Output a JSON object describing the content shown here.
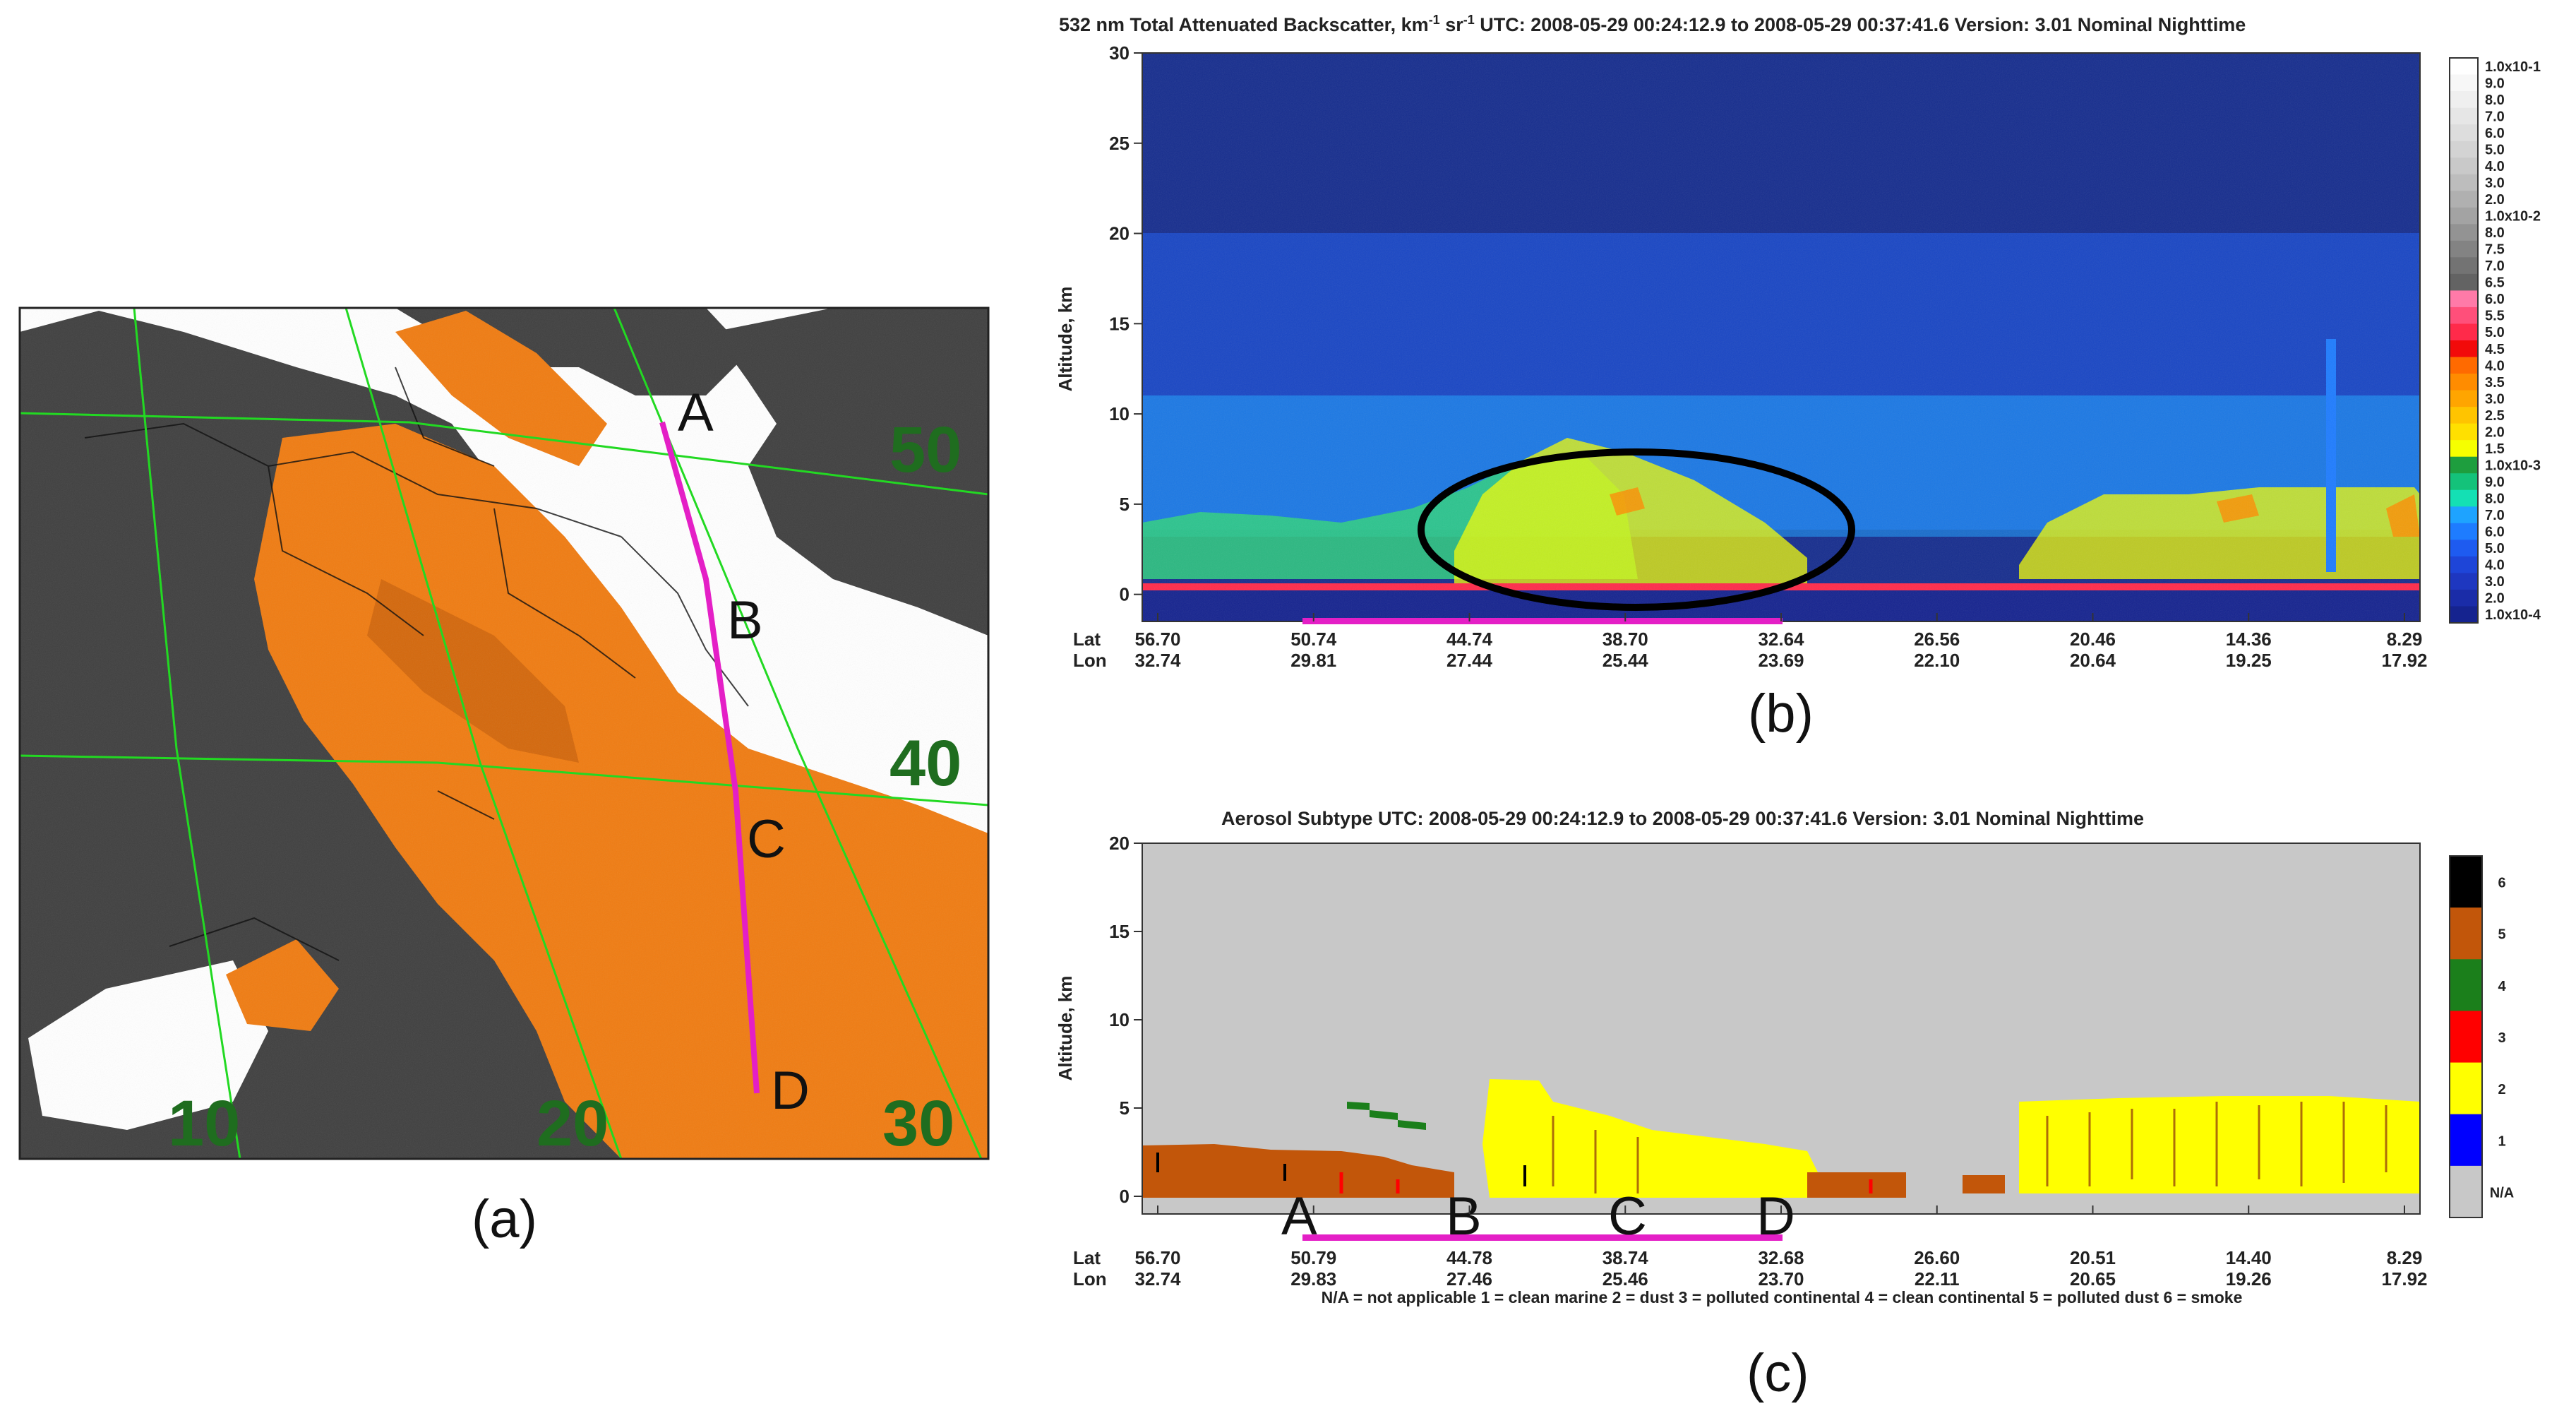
{
  "panels": {
    "a": {
      "label": "(a)"
    },
    "b": {
      "label": "(b)"
    },
    "c": {
      "label": "(c)"
    }
  },
  "map": {
    "grid_labels": {
      "lat": [
        "50",
        "40"
      ],
      "lon": [
        "10",
        "20",
        "30"
      ]
    },
    "points": [
      "A",
      "B",
      "C",
      "D"
    ],
    "colors": {
      "dust": "#f07c12",
      "land": "#404040",
      "cloud": "#ffffff",
      "grid": "#22d922",
      "track": "#e41fc6"
    }
  },
  "chart_data": [
    {
      "panel": "b",
      "type": "heatmap",
      "title_parts": {
        "main": "532 nm Total Attenuated Backscatter, km",
        "exp1": "-1",
        "mid": " sr",
        "exp2": "-1",
        "rest": "    UTC:  2008-05-29 00:24:12.9  to  2008-05-29 00:37:41.6    Version: 3.01  Nominal  Nighttime"
      },
      "ylabel": "Altitude, km",
      "ylim": [
        -1.5,
        30
      ],
      "y_ticks": [
        "0",
        "5",
        "10",
        "15",
        "20",
        "25",
        "30"
      ],
      "lat_label": "Lat",
      "lon_label": "Lon",
      "lat": [
        "56.70",
        "50.74",
        "44.74",
        "38.70",
        "32.64",
        "26.56",
        "20.46",
        "14.36",
        "8.29"
      ],
      "lon": [
        "32.74",
        "29.81",
        "27.44",
        "25.44",
        "23.69",
        "22.10",
        "20.64",
        "19.25",
        "17.92"
      ],
      "colorbar_labels": [
        "1.0x10-1",
        "9.0",
        "8.0",
        "7.0",
        "6.0",
        "5.0",
        "4.0",
        "3.0",
        "2.0",
        "1.0x10-2",
        "8.0",
        "7.5",
        "7.0",
        "6.5",
        "6.0",
        "5.5",
        "5.0",
        "4.5",
        "4.0",
        "3.5",
        "3.0",
        "2.5",
        "2.0",
        "1.5",
        "1.0x10-3",
        "9.0",
        "8.0",
        "7.0",
        "6.0",
        "5.0",
        "4.0",
        "3.0",
        "2.0",
        "1.0x10-4"
      ],
      "colorbar_colors": [
        "#ffffff",
        "#f7f7f7",
        "#efefef",
        "#e6e6e6",
        "#dddddd",
        "#d3d3d3",
        "#c9c9c9",
        "#bdbdbd",
        "#b0b0b0",
        "#a3a3a3",
        "#939393",
        "#838383",
        "#737373",
        "#636363",
        "#ff7aa8",
        "#ff4f7a",
        "#ff2a4a",
        "#f20a0a",
        "#ff6a00",
        "#ff8c00",
        "#ffa500",
        "#ffc400",
        "#ffe000",
        "#f6ff00",
        "#1e9e3e",
        "#14c27a",
        "#14e0b4",
        "#1ea3ff",
        "#1e7cff",
        "#1e5bf0",
        "#1e45d8",
        "#1e37c0",
        "#1a2ca8",
        "#15238f"
      ],
      "ellipse_center": [
        -40.0,
        2.8
      ]
    },
    {
      "panel": "c",
      "type": "heatmap",
      "title": "Aerosol Subtype    UTC:  2008-05-29   00:24:12.9  to  2008-05-29   00:37:41.6    Version: 3.01   Nominal Nighttime",
      "ylabel": "Altitude, km",
      "ylim": [
        -1,
        20
      ],
      "y_ticks": [
        "0",
        "5",
        "10",
        "15",
        "20"
      ],
      "lat_label": "Lat",
      "lon_label": "Lon",
      "lat": [
        "56.70",
        "50.79",
        "44.78",
        "38.74",
        "32.68",
        "26.60",
        "20.51",
        "14.40",
        "8.29"
      ],
      "lon": [
        "32.74",
        "29.83",
        "27.46",
        "25.46",
        "23.70",
        "22.11",
        "20.65",
        "19.26",
        "17.92"
      ],
      "segment_labels": [
        "A",
        "B",
        "C",
        "D"
      ],
      "colorbar": [
        {
          "label": "6",
          "color": "#000000"
        },
        {
          "label": "5",
          "color": "#c2560a"
        },
        {
          "label": "4",
          "color": "#1b7f1b"
        },
        {
          "label": "3",
          "color": "#ff0000"
        },
        {
          "label": "2",
          "color": "#ffff00"
        },
        {
          "label": "1",
          "color": "#0000ff"
        },
        {
          "label": "N/A",
          "color": "#c8c8c8"
        }
      ],
      "legend": "N/A = not applicable       1 = clean marine       2 = dust      3 = polluted continental       4 = clean continental       5 = polluted dust       6 = smoke"
    }
  ]
}
